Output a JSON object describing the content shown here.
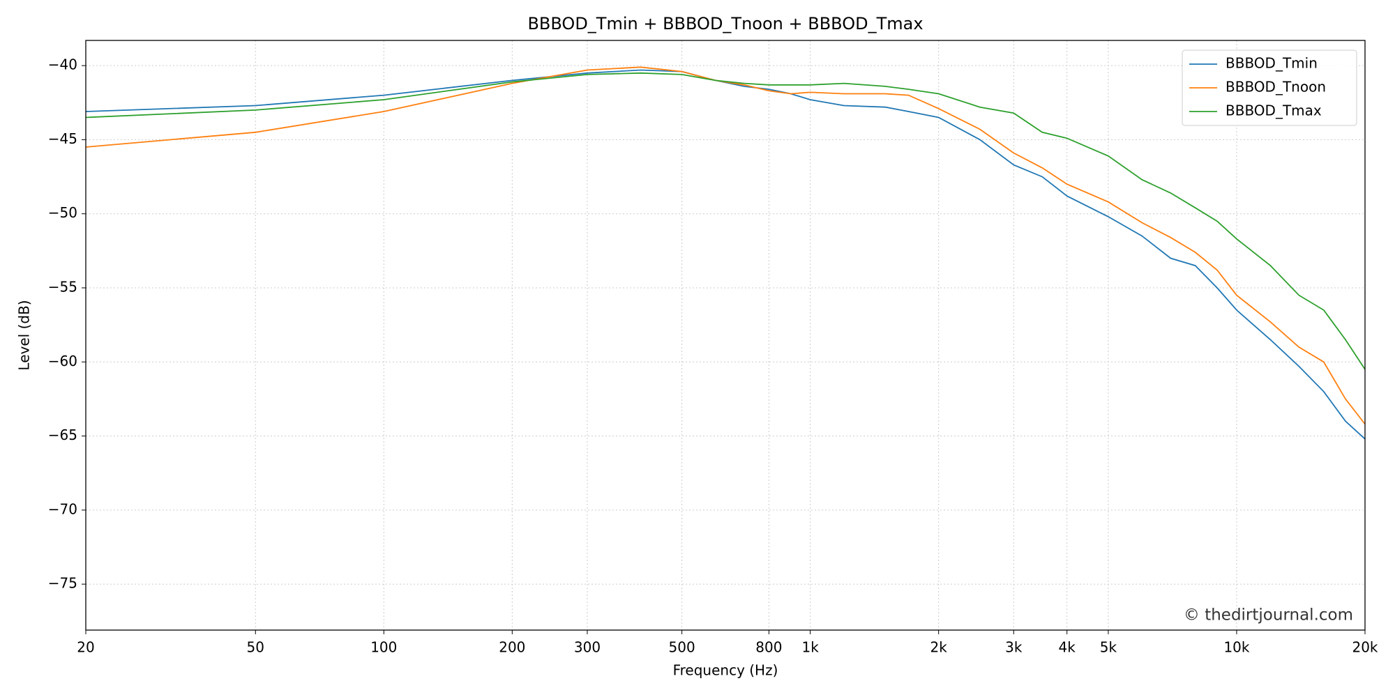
{
  "chart_data": {
    "type": "line",
    "title": "BBBOD_Tmin + BBBOD_Tnoon + BBBOD_Tmax",
    "xlabel": "Frequency (Hz)",
    "ylabel": "Level (dB)",
    "annotation": "© thedirtjournal.com",
    "xscale": "log",
    "grid": true,
    "legend": "upper right",
    "xlim": [
      20,
      20000
    ],
    "ylim": [
      -78.1,
      -38.3
    ],
    "xticks": [
      20,
      50,
      100,
      200,
      300,
      500,
      800,
      {
        "value": 1000,
        "label": "1k"
      },
      {
        "value": 2000,
        "label": "2k"
      },
      {
        "value": 3000,
        "label": "3k"
      },
      {
        "value": 4000,
        "label": "4k"
      },
      {
        "value": 5000,
        "label": "5k"
      },
      {
        "value": 10000,
        "label": "10k"
      },
      {
        "value": 20000,
        "label": "20k"
      }
    ],
    "yticks": [
      {
        "value": -40,
        "label": "−40"
      },
      {
        "value": -45,
        "label": "−45"
      },
      {
        "value": -50,
        "label": "−50"
      },
      {
        "value": -55,
        "label": "−55"
      },
      {
        "value": -60,
        "label": "−60"
      },
      {
        "value": -65,
        "label": "−65"
      },
      {
        "value": -70,
        "label": "−70"
      },
      {
        "value": -75,
        "label": "−75"
      }
    ],
    "x": [
      20,
      50,
      100,
      200,
      300,
      400,
      500,
      600,
      700,
      800,
      900,
      1000,
      1200,
      1500,
      1700,
      2000,
      2500,
      3000,
      3500,
      4000,
      5000,
      6000,
      7000,
      8000,
      9000,
      10000,
      12000,
      14000,
      16000,
      18000,
      20000
    ],
    "series": [
      {
        "name": "BBBOD_Tmin",
        "color": "#1f77b4",
        "values": [
          -43.1,
          -42.7,
          -42.0,
          -41.0,
          -40.5,
          -40.3,
          -40.4,
          -41.0,
          -41.4,
          -41.6,
          -41.9,
          -42.3,
          -42.7,
          -42.8,
          -43.1,
          -43.5,
          -45.0,
          -46.7,
          -47.5,
          -48.8,
          -50.2,
          -51.5,
          -53.0,
          -53.5,
          -55.0,
          -56.5,
          -58.5,
          -60.3,
          -62.0,
          -64.0,
          -65.2
        ]
      },
      {
        "name": "BBBOD_Tnoon",
        "color": "#ff7f0e",
        "values": [
          -45.5,
          -44.5,
          -43.1,
          -41.2,
          -40.3,
          -40.1,
          -40.4,
          -41.0,
          -41.3,
          -41.7,
          -41.9,
          -41.8,
          -41.9,
          -41.9,
          -42.0,
          -42.9,
          -44.3,
          -45.9,
          -46.9,
          -48.0,
          -49.2,
          -50.6,
          -51.6,
          -52.6,
          -53.8,
          -55.5,
          -57.3,
          -59.0,
          -60.0,
          -62.5,
          -64.2
        ]
      },
      {
        "name": "BBBOD_Tmax",
        "color": "#2ca02c",
        "values": [
          -43.5,
          -43.0,
          -42.3,
          -41.1,
          -40.6,
          -40.5,
          -40.6,
          -41.0,
          -41.2,
          -41.3,
          -41.3,
          -41.3,
          -41.2,
          -41.4,
          -41.6,
          -41.9,
          -42.8,
          -43.2,
          -44.5,
          -44.9,
          -46.1,
          -47.7,
          -48.6,
          -49.6,
          -50.5,
          -51.7,
          -53.5,
          -55.5,
          -56.5,
          -58.5,
          -60.5
        ]
      }
    ]
  }
}
